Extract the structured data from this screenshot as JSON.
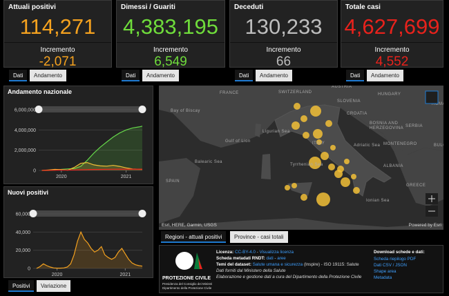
{
  "cards": [
    {
      "title": "Attuali positivi",
      "value": "114,271",
      "increment_label": "Incremento",
      "increment": "-2,071",
      "color": "#f5a21f",
      "tabs": [
        "Dati",
        "Andamento"
      ]
    },
    {
      "title": "Dimessi / Guariti",
      "value": "4,383,195",
      "increment_label": "Incremento",
      "increment": "6,549",
      "color": "#6fdc3b",
      "tabs": [
        "Dati",
        "Andamento"
      ]
    },
    {
      "title": "Deceduti",
      "value": "130,233",
      "increment_label": "Incremento",
      "increment": "66",
      "color": "#bdbdbd",
      "tabs": [
        "Dati",
        "Andamento"
      ]
    },
    {
      "title": "Totale casi",
      "value": "4,627,699",
      "increment_label": "Incremento",
      "increment": "4,552",
      "color": "#e8221c",
      "tabs": [
        "Dati",
        "Andamento"
      ]
    }
  ],
  "national_chart": {
    "type": "line",
    "title": "Andamento nazionale",
    "x": [
      2019.7,
      2019.8,
      2019.9,
      2020.0,
      2020.1,
      2020.2,
      2020.3,
      2020.4,
      2020.5,
      2020.6,
      2020.7,
      2020.8,
      2020.9,
      2021.0,
      2021.1,
      2021.2,
      2021.25
    ],
    "series": [
      {
        "color": "#66d84a",
        "values": [
          0,
          1000,
          20000,
          100000,
          150000,
          180000,
          400000,
          1000000,
          1700000,
          2300000,
          2800000,
          3300000,
          3700000,
          4000000,
          4200000,
          4300000,
          4380000
        ]
      },
      {
        "color": "#f2c037",
        "values": [
          0,
          50000,
          100000,
          80000,
          30000,
          300000,
          700000,
          780000,
          550000,
          450000,
          420000,
          500000,
          400000,
          250000,
          150000,
          120000,
          114000
        ]
      },
      {
        "color": "#e8221c",
        "values": [
          0,
          10000,
          30000,
          35000,
          36000,
          40000,
          60000,
          80000,
          95000,
          105000,
          115000,
          122000,
          127000,
          128000,
          129000,
          130000,
          130000
        ]
      }
    ],
    "xlim": [
      2019.65,
      2021.25
    ],
    "xticks": [
      2020,
      2021
    ],
    "ylim": [
      0,
      6000000
    ],
    "yticks": [
      0,
      {
        "value": 2000000,
        "label": "2,000,000"
      },
      {
        "value": 4000000,
        "label": "4,000,000"
      },
      {
        "value": 6000000,
        "label": "6,000,000"
      }
    ]
  },
  "new_cases_chart": {
    "type": "line",
    "title": "Nuovi positivi",
    "x": [
      2019.7,
      2019.75,
      2019.8,
      2019.85,
      2019.9,
      2019.95,
      2020.0,
      2020.05,
      2020.1,
      2020.15,
      2020.2,
      2020.25,
      2020.3,
      2020.35,
      2020.4,
      2020.45,
      2020.5,
      2020.55,
      2020.6,
      2020.65,
      2020.7,
      2020.75,
      2020.8,
      2020.85,
      2020.9,
      2020.95,
      2021.0,
      2021.05,
      2021.1,
      2021.15,
      2021.2,
      2021.25
    ],
    "series": [
      {
        "color": "#f5a21f",
        "values": [
          0,
          2000,
          5000,
          3000,
          1500,
          500,
          300,
          300,
          500,
          1500,
          5000,
          15000,
          30000,
          40000,
          32000,
          28000,
          22000,
          18000,
          20000,
          24000,
          15000,
          12000,
          10000,
          12000,
          18000,
          22000,
          16000,
          10000,
          6000,
          4000,
          3000,
          2500
        ]
      }
    ],
    "xlim": [
      2019.65,
      2021.25
    ],
    "xticks": [
      2020,
      2021
    ],
    "ylim": [
      0,
      60000
    ],
    "yticks": [
      0,
      {
        "value": 20000,
        "label": "20,000"
      },
      {
        "value": 40000,
        "label": "40,000"
      },
      {
        "value": 60000,
        "label": "60,000"
      }
    ],
    "tabs": [
      "Positivi",
      "Variazione"
    ]
  },
  "map": {
    "labels": [
      "FRANCE",
      "SWITZERLAND",
      "AUSTRIA",
      "HUNGARY",
      "SLOVENIA",
      "CROATIA",
      "BOSNIA AND",
      "HERZEGOVINA",
      "SERBIA",
      "ROMANIA",
      "Bay of Biscay",
      "Ligurian Sea",
      "Gulf of Lion",
      "ITALY",
      "Adriatic Sea",
      "MONTENEGRO",
      "BULGARIA",
      "Balearic Sea",
      "Tyrrhenian Sea",
      "ALBANIA",
      "SPAIN",
      "GREECE",
      "Ionian Sea"
    ],
    "attribution": "Esri, HERE, Garmin, USGS",
    "powered": "Powered by Esri",
    "tabs": [
      "Regioni - attuali positivi",
      "Province - casi totali"
    ]
  },
  "info": {
    "logo_title": "PROTEZIONE CIVILE",
    "logo_line1": "Presidenza del Consiglio dei Ministri",
    "logo_line2": "Dipartimento della Protezione Civile",
    "license_label": "Licenza:",
    "license_link": "CC-BY-4.0",
    "license_sep": " - ",
    "license_view": "Visualizza licenza",
    "rndt_label": "Scheda metadati RNDT:",
    "rndt_dati": "dati",
    "rndt_sep": " - ",
    "rndt_aree": "aree",
    "themes_label": "Temi del dataset:",
    "themes_link": "Salute umana e sicurezza",
    "themes_rest": "(Inspire) - ISO 19115: Salute",
    "source": "Dati forniti dal Ministero della Salute",
    "processing": "Elaborazione e gestione dati a cura del Dipartimento della Protezione Civile",
    "download_title": "Download schede e dati:",
    "downloads": [
      "Scheda riepilogo PDF",
      "Dati CSV / JSON",
      "Shape area",
      "Metadata"
    ]
  }
}
